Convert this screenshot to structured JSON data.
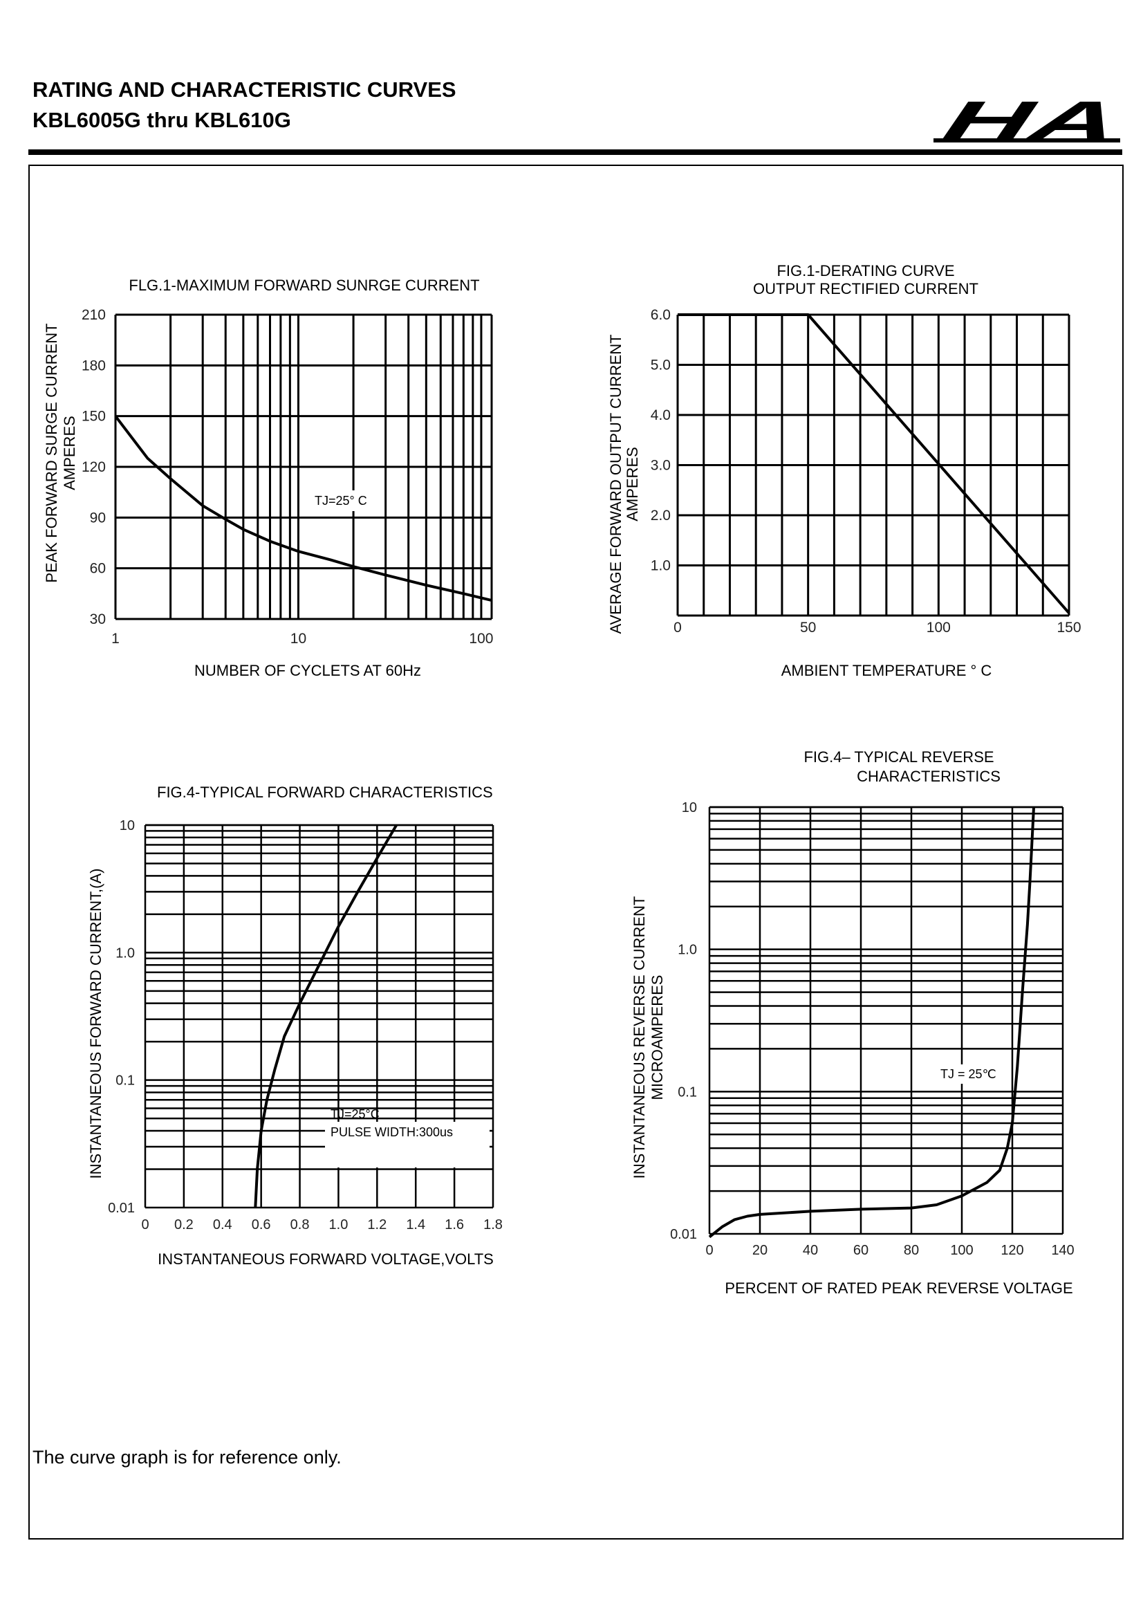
{
  "header": {
    "line1": "RATING AND CHARACTERISTIC CURVES",
    "line2": "KBL6005G thru KBL610G",
    "logo_text": "HA"
  },
  "footer": {
    "note": "The curve graph is for reference only."
  },
  "chart_data": [
    {
      "type": "line",
      "title": "FLG.1-MAXIMUM FORWARD SUNRGE CURRENT",
      "xlabel": "NUMBER OF CYCLETS AT 60Hz",
      "ylabel": [
        "PEAK FORWARD SURGE CURRENT",
        "AMPERES"
      ],
      "xscale": "log",
      "yscale": "linear",
      "xlim": [
        1,
        114
      ],
      "ylim": [
        30,
        210
      ],
      "xticks": [
        1,
        10,
        100
      ],
      "xtick_labels": [
        "1",
        "10",
        "100"
      ],
      "yticks": [
        30,
        60,
        90,
        120,
        150,
        180,
        210
      ],
      "ytick_labels": [
        "30",
        "60",
        "90",
        "120",
        "150",
        "180",
        "210"
      ],
      "grid": true,
      "annotation": "TJ=25°  C",
      "series": [
        {
          "name": "TJ=25°C",
          "x": [
            1,
            1.5,
            2,
            3,
            4,
            5,
            7,
            10,
            15,
            20,
            30,
            50,
            80,
            114
          ],
          "y": [
            150,
            125,
            113,
            97,
            89,
            83,
            76,
            70,
            65,
            61,
            56,
            50,
            45,
            41
          ]
        }
      ]
    },
    {
      "type": "line",
      "title": [
        "FIG.1-DERATING CURVE",
        "OUTPUT RECTIFIED CURRENT"
      ],
      "xlabel": "AMBIENT TEMPERATURE °  C",
      "ylabel": [
        "AVERAGE FORWARD OUTPUT CURRENT",
        "AMPERES"
      ],
      "xscale": "linear",
      "yscale": "linear",
      "xlim": [
        0,
        150
      ],
      "ylim": [
        0,
        6
      ],
      "xticks": [
        0,
        50,
        100,
        150
      ],
      "xtick_labels": [
        "0",
        "50",
        "100",
        "150"
      ],
      "yticks": [
        1,
        2,
        3,
        4,
        5,
        6
      ],
      "ytick_labels": [
        "1.0",
        "2.0",
        "3.0",
        "4.0",
        "5.0",
        "6.0"
      ],
      "grid": true,
      "series": [
        {
          "name": "derating",
          "x": [
            0,
            50,
            150
          ],
          "y": [
            6,
            6,
            0.05
          ]
        }
      ]
    },
    {
      "type": "line",
      "title": "FIG.4-TYPICAL FORWARD CHARACTERISTICS",
      "xlabel": "INSTANTANEOUS FORWARD VOLTAGE,VOLTS",
      "ylabel": [
        "INSTANTANEOUS FORWARD CURRENT,(A)"
      ],
      "xscale": "linear",
      "yscale": "log",
      "xlim": [
        0,
        1.8
      ],
      "ylim": [
        0.01,
        10
      ],
      "xticks": [
        0,
        0.2,
        0.4,
        0.6,
        0.8,
        1.0,
        1.2,
        1.4,
        1.6,
        1.8
      ],
      "xtick_labels": [
        "0",
        "0.2",
        "0.4",
        "0.6",
        "0.8",
        "1.0",
        "1.2",
        "1.4",
        "1.6",
        "1.8"
      ],
      "yticks": [
        0.01,
        0.1,
        1,
        10
      ],
      "ytick_labels": [
        "0.01",
        "0.1",
        "1.0",
        "10"
      ],
      "grid": true,
      "annotation": [
        "TJ=25°C",
        "PULSE WIDTH:300us"
      ],
      "series": [
        {
          "name": "TJ=25°C",
          "x": [
            0.57,
            0.58,
            0.6,
            0.63,
            0.67,
            0.72,
            0.8,
            0.9,
            1.0,
            1.1,
            1.2,
            1.3
          ],
          "y": [
            0.01,
            0.02,
            0.04,
            0.07,
            0.12,
            0.22,
            0.4,
            0.8,
            1.6,
            3,
            5.5,
            10
          ]
        }
      ]
    },
    {
      "type": "line",
      "title": [
        "FIG.4– TYPICAL REVERSE",
        "CHARACTERISTICS"
      ],
      "xlabel": "PERCENT OF RATED PEAK REVERSE VOLTAGE",
      "ylabel": [
        "INSTANTANEOUS REVERSE CURRENT",
        "MICROAMPERES"
      ],
      "xscale": "linear",
      "yscale": "log",
      "xlim": [
        0,
        140
      ],
      "ylim": [
        0.01,
        10
      ],
      "xticks": [
        0,
        20,
        40,
        60,
        80,
        100,
        120,
        140
      ],
      "xtick_labels": [
        "0",
        "20",
        "40",
        "60",
        "80",
        "100",
        "120",
        "140"
      ],
      "yticks": [
        0.01,
        0.1,
        1,
        10
      ],
      "ytick_labels": [
        "0.01",
        "0.1",
        "1.0",
        "10"
      ],
      "grid": true,
      "annotation": "TJ = 25℃",
      "series": [
        {
          "name": "TJ=25°C",
          "x": [
            0,
            5,
            10,
            15,
            20,
            40,
            60,
            80,
            90,
            100,
            110,
            115,
            118,
            120,
            122,
            124,
            126,
            127,
            128.5
          ],
          "y": [
            0.0095,
            0.0112,
            0.0126,
            0.0133,
            0.0137,
            0.0144,
            0.0149,
            0.0152,
            0.016,
            0.0185,
            0.023,
            0.028,
            0.04,
            0.06,
            0.15,
            0.5,
            1.5,
            3,
            10
          ]
        }
      ]
    }
  ]
}
